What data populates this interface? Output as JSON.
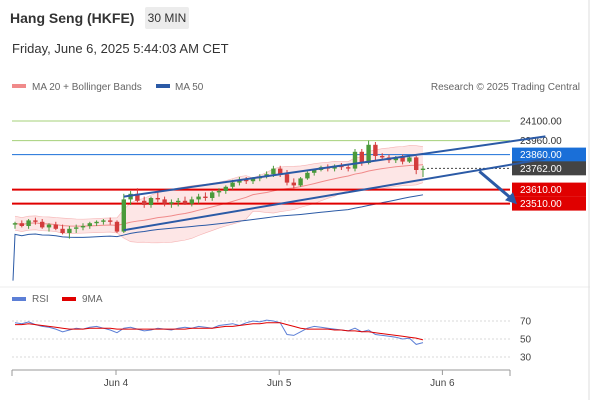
{
  "header": {
    "title": "Hang Seng (HKFE)",
    "timeframe": "30 MIN",
    "datetime": "Friday, June 6, 2025 5:44:03 AM CET"
  },
  "legend": {
    "ma20_label": "MA 20 + Bollinger Bands",
    "ma50_label": "MA 50",
    "credit": "Research © 2025 Trading Central"
  },
  "rsi_legend": {
    "rsi_label": "RSI",
    "ma_label": "9MA"
  },
  "colors": {
    "up": "#4a9a3a",
    "down": "#d33c3c",
    "ma20": "#f08a8a",
    "ma50": "#2b5aa6",
    "band_fill": "#fde0e0",
    "resistance_green": "#a5d07a",
    "pivot_blue": "#1a6fd8",
    "support_red": "#e00000",
    "current_bg": "#444444",
    "rsi": "#5c7fd6",
    "rsi_ma": "#e00000"
  },
  "chart_data": [
    {
      "type": "candlestick",
      "instrument": "Hang Seng (HKFE)",
      "timeframe": "30 MIN",
      "x_labels": [
        "Jun 4",
        "Jun 5",
        "Jun 6"
      ],
      "ylim": [
        22950,
        24250
      ],
      "price_levels": [
        {
          "value": 24100.0,
          "label": "24100.00",
          "style": "resistance"
        },
        {
          "value": 23960.0,
          "label": "23960.00",
          "style": "resistance"
        },
        {
          "value": 23860.0,
          "label": "23860.00",
          "style": "pivot"
        },
        {
          "value": 23762.0,
          "label": "23762.00",
          "style": "current"
        },
        {
          "value": 23610.0,
          "label": "23610.00",
          "style": "support"
        },
        {
          "value": 23510.0,
          "label": "23510.00",
          "style": "support"
        }
      ],
      "channel": {
        "upper": [
          [
            16,
            23560
          ],
          [
            78,
            23990
          ]
        ],
        "lower": [
          [
            16,
            23320
          ],
          [
            78,
            23830
          ]
        ]
      },
      "arrow": {
        "from": [
          78,
          23740
        ],
        "to": [
          85,
          23520
        ]
      },
      "candles": [
        [
          23360,
          23380,
          23330,
          23370
        ],
        [
          23370,
          23390,
          23340,
          23350
        ],
        [
          23350,
          23400,
          23330,
          23390
        ],
        [
          23390,
          23410,
          23360,
          23380
        ],
        [
          23380,
          23400,
          23330,
          23340
        ],
        [
          23340,
          23370,
          23310,
          23360
        ],
        [
          23360,
          23380,
          23320,
          23330
        ],
        [
          23330,
          23360,
          23290,
          23300
        ],
        [
          23300,
          23350,
          23260,
          23330
        ],
        [
          23330,
          23360,
          23300,
          23340
        ],
        [
          23340,
          23370,
          23320,
          23350
        ],
        [
          23350,
          23380,
          23330,
          23370
        ],
        [
          23370,
          23390,
          23350,
          23380
        ],
        [
          23380,
          23400,
          23360,
          23390
        ],
        [
          23390,
          23410,
          23360,
          23380
        ],
        [
          23380,
          23390,
          23300,
          23310
        ],
        [
          23310,
          23580,
          23300,
          23540
        ],
        [
          23540,
          23600,
          23500,
          23580
        ],
        [
          23580,
          23620,
          23520,
          23530
        ],
        [
          23530,
          23560,
          23480,
          23500
        ],
        [
          23500,
          23560,
          23480,
          23550
        ],
        [
          23550,
          23590,
          23520,
          23540
        ],
        [
          23540,
          23560,
          23490,
          23510
        ],
        [
          23510,
          23540,
          23480,
          23520
        ],
        [
          23520,
          23550,
          23490,
          23530
        ],
        [
          23530,
          23560,
          23500,
          23510
        ],
        [
          23510,
          23560,
          23490,
          23540
        ],
        [
          23540,
          23580,
          23510,
          23560
        ],
        [
          23560,
          23590,
          23530,
          23550
        ],
        [
          23550,
          23600,
          23530,
          23590
        ],
        [
          23590,
          23620,
          23560,
          23600
        ],
        [
          23600,
          23640,
          23580,
          23630
        ],
        [
          23630,
          23680,
          23610,
          23660
        ],
        [
          23660,
          23700,
          23640,
          23680
        ],
        [
          23680,
          23700,
          23650,
          23670
        ],
        [
          23670,
          23700,
          23650,
          23690
        ],
        [
          23690,
          23720,
          23670,
          23700
        ],
        [
          23700,
          23740,
          23690,
          23720
        ],
        [
          23720,
          23780,
          23700,
          23760
        ],
        [
          23760,
          23780,
          23700,
          23720
        ],
        [
          23720,
          23750,
          23640,
          23660
        ],
        [
          23660,
          23690,
          23620,
          23640
        ],
        [
          23640,
          23700,
          23630,
          23690
        ],
        [
          23690,
          23740,
          23680,
          23730
        ],
        [
          23730,
          23760,
          23710,
          23750
        ],
        [
          23750,
          23780,
          23740,
          23770
        ],
        [
          23770,
          23790,
          23740,
          23760
        ],
        [
          23760,
          23790,
          23740,
          23780
        ],
        [
          23780,
          23800,
          23750,
          23770
        ],
        [
          23770,
          23790,
          23740,
          23760
        ],
        [
          23760,
          23900,
          23740,
          23880
        ],
        [
          23880,
          23900,
          23780,
          23800
        ],
        [
          23800,
          23960,
          23790,
          23930
        ],
        [
          23930,
          23950,
          23820,
          23850
        ],
        [
          23850,
          23870,
          23820,
          23840
        ],
        [
          23840,
          23860,
          23800,
          23820
        ],
        [
          23820,
          23850,
          23800,
          23840
        ],
        [
          23840,
          23860,
          23790,
          23810
        ],
        [
          23810,
          23850,
          23800,
          23840
        ],
        [
          23840,
          23850,
          23720,
          23750
        ],
        [
          23750,
          23780,
          23700,
          23760
        ]
      ]
    },
    {
      "type": "line",
      "title": "RSI",
      "series": [
        {
          "name": "RSI"
        },
        {
          "name": "9MA"
        }
      ],
      "yticks": [
        70,
        50,
        30
      ],
      "ylim": [
        20,
        80
      ],
      "rsi": [
        68,
        67,
        69,
        66,
        64,
        63,
        61,
        58,
        60,
        62,
        61,
        63,
        64,
        62,
        60,
        57,
        62,
        63,
        61,
        59,
        60,
        62,
        61,
        60,
        62,
        63,
        62,
        64,
        63,
        62,
        65,
        66,
        67,
        65,
        68,
        70,
        69,
        71,
        70,
        68,
        55,
        54,
        58,
        62,
        64,
        63,
        62,
        61,
        60,
        59,
        62,
        58,
        60,
        55,
        54,
        53,
        52,
        50,
        51,
        44,
        46
      ],
      "rsi_ma": [
        66,
        66,
        67,
        66,
        65,
        64,
        63,
        62,
        61,
        61,
        61,
        62,
        62,
        62,
        62,
        61,
        61,
        61,
        61,
        61,
        61,
        61,
        61,
        61,
        61,
        61,
        62,
        62,
        62,
        62,
        63,
        64,
        64,
        65,
        66,
        67,
        67,
        68,
        68,
        68,
        66,
        64,
        62,
        61,
        61,
        61,
        61,
        60,
        60,
        59,
        59,
        58,
        58,
        57,
        56,
        55,
        54,
        53,
        52,
        51,
        49
      ]
    }
  ]
}
